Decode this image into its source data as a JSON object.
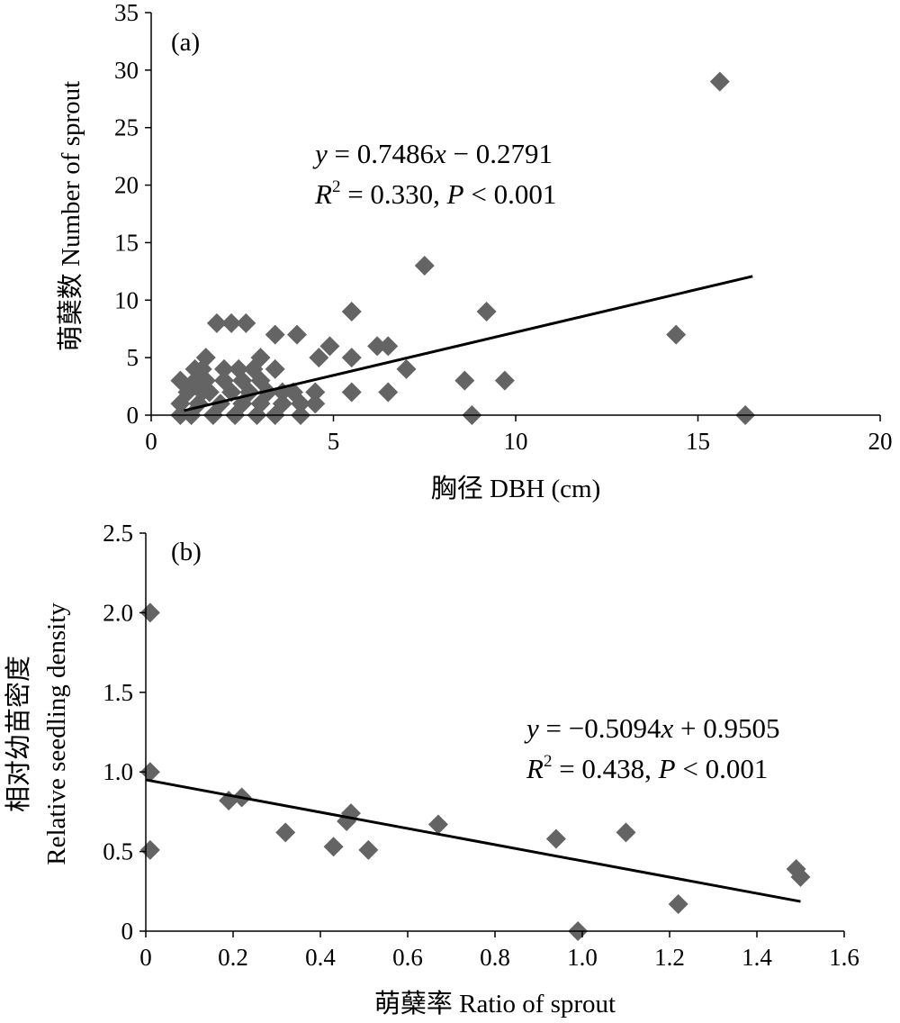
{
  "chart_data": [
    {
      "type": "scatter",
      "panel_label": "(a)",
      "xlabel": "胸径 DBH (cm)",
      "ylabel": "萌蘖数 Number of sprout",
      "xlim": [
        0,
        20
      ],
      "ylim": [
        0,
        35
      ],
      "xticks": [
        "0",
        "5",
        "10",
        "15",
        "20"
      ],
      "yticks": [
        "0",
        "5",
        "10",
        "15",
        "20",
        "25",
        "30",
        "35"
      ],
      "marker_color": "#646464",
      "points": [
        [
          15.6,
          29
        ],
        [
          7.5,
          13
        ],
        [
          14.4,
          7
        ],
        [
          16.3,
          0
        ],
        [
          9.2,
          9
        ],
        [
          5.5,
          9
        ],
        [
          9.7,
          3
        ],
        [
          8.6,
          3
        ],
        [
          8.8,
          0
        ],
        [
          7.0,
          4
        ],
        [
          6.5,
          6
        ],
        [
          6.2,
          6
        ],
        [
          6.5,
          2
        ],
        [
          5.5,
          5
        ],
        [
          5.5,
          2
        ],
        [
          4.9,
          6
        ],
        [
          4.6,
          5
        ],
        [
          3.4,
          7
        ],
        [
          4.0,
          7
        ],
        [
          3.4,
          4
        ],
        [
          4.5,
          2
        ],
        [
          4.5,
          1
        ],
        [
          4.1,
          0
        ],
        [
          3.9,
          2
        ],
        [
          3.0,
          5
        ],
        [
          2.6,
          8
        ],
        [
          2.2,
          8
        ],
        [
          1.8,
          8
        ],
        [
          1.5,
          5
        ],
        [
          1.4,
          4
        ],
        [
          2.0,
          4
        ],
        [
          2.4,
          4
        ],
        [
          2.8,
          4
        ],
        [
          3.0,
          3
        ],
        [
          1.2,
          3
        ],
        [
          1.5,
          3
        ],
        [
          2.5,
          3
        ],
        [
          0.8,
          3
        ],
        [
          1.0,
          2
        ],
        [
          1.6,
          2
        ],
        [
          2.2,
          2
        ],
        [
          2.7,
          2
        ],
        [
          3.2,
          2
        ],
        [
          1.3,
          1
        ],
        [
          1.9,
          1
        ],
        [
          2.5,
          1
        ],
        [
          3.0,
          1
        ],
        [
          3.6,
          1
        ],
        [
          0.8,
          1
        ],
        [
          1.1,
          0
        ],
        [
          1.7,
          0
        ],
        [
          2.3,
          0
        ],
        [
          2.9,
          0
        ],
        [
          3.4,
          0
        ],
        [
          0.8,
          0
        ],
        [
          1.4,
          2
        ],
        [
          2.0,
          3
        ],
        [
          1.2,
          4
        ],
        [
          3.6,
          2
        ],
        [
          4.1,
          1
        ]
      ],
      "trendline": {
        "slope": 0.7486,
        "intercept": -0.2791,
        "x_range": [
          0.9,
          16.5
        ]
      },
      "equation": {
        "y_var": "y",
        "mid": " = 0.7486",
        "x_var": "x",
        "tail": " − 0.2791"
      },
      "stats": {
        "r": "R",
        "r_sup": "2",
        "mid": " = 0.330, ",
        "p": "P",
        "tail": " < 0.001"
      }
    },
    {
      "type": "scatter",
      "panel_label": "(b)",
      "xlabel": "萌蘖率 Ratio of sprout",
      "ylabel_line1": "相对幼苗密度",
      "ylabel_line2": "Relative seedling density",
      "xlim": [
        0,
        1.6
      ],
      "ylim": [
        0,
        2.5
      ],
      "xticks": [
        "0",
        "0.2",
        "0.4",
        "0.6",
        "0.8",
        "1.0",
        "1.2",
        "1.4",
        "1.6"
      ],
      "yticks": [
        "0",
        "0.5",
        "1.0",
        "1.5",
        "2.0",
        "2.5"
      ],
      "marker_color": "#646464",
      "points": [
        [
          0.01,
          2.0
        ],
        [
          0.01,
          1.0
        ],
        [
          0.01,
          0.51
        ],
        [
          0.19,
          0.82
        ],
        [
          0.22,
          0.84
        ],
        [
          0.32,
          0.62
        ],
        [
          0.43,
          0.53
        ],
        [
          0.46,
          0.69
        ],
        [
          0.47,
          0.74
        ],
        [
          0.51,
          0.51
        ],
        [
          0.67,
          0.67
        ],
        [
          0.94,
          0.58
        ],
        [
          0.99,
          0.0
        ],
        [
          1.1,
          0.62
        ],
        [
          1.22,
          0.17
        ],
        [
          1.49,
          0.39
        ],
        [
          1.5,
          0.34
        ]
      ],
      "trendline": {
        "slope": -0.5094,
        "intercept": 0.9505,
        "x_range": [
          0.0,
          1.5
        ]
      },
      "equation": {
        "y_var": "y",
        "mid": " = −0.5094",
        "x_var": "x",
        "tail": " + 0.9505"
      },
      "stats": {
        "r": "R",
        "r_sup": "2",
        "mid": " = 0.438, ",
        "p": "P",
        "tail": " < 0.001"
      }
    }
  ]
}
